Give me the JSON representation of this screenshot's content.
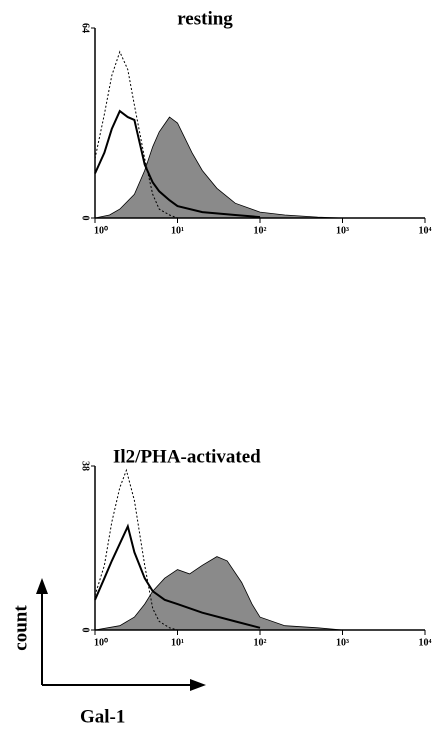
{
  "chart_data": [
    {
      "type": "histogram-overlay",
      "title": "resting",
      "xscale": "log",
      "xlim": [
        1,
        10000
      ],
      "ylim": [
        0,
        64
      ],
      "xticks": [
        {
          "value": 1,
          "label": "10⁰"
        },
        {
          "value": 10,
          "label": "10¹"
        },
        {
          "value": 100,
          "label": "10²"
        },
        {
          "value": 1000,
          "label": "10³"
        },
        {
          "value": 10000,
          "label": "10⁴"
        }
      ],
      "yticks": [
        0,
        64
      ],
      "series": [
        {
          "color": "#8a8a8a",
          "fill": true,
          "x": [
            1,
            1.5,
            2,
            3,
            4,
            5,
            6,
            8,
            10,
            15,
            20,
            30,
            50,
            100,
            200,
            500,
            1000
          ],
          "values": [
            0,
            1,
            3,
            8,
            16,
            24,
            29,
            34,
            32,
            22,
            16,
            10,
            5,
            2,
            1,
            0.3,
            0
          ]
        },
        {
          "color": "#000000",
          "dash": "solid",
          "x": [
            1,
            1.3,
            1.6,
            2,
            2.5,
            3,
            3.5,
            4,
            5,
            6,
            8,
            10,
            20,
            50,
            100
          ],
          "values": [
            15,
            22,
            30,
            36,
            34,
            33,
            25,
            18,
            12,
            9,
            6,
            4,
            2,
            1,
            0.3
          ]
        },
        {
          "color": "#000000",
          "dash": "dotted",
          "x": [
            1,
            1.3,
            1.6,
            2,
            2.5,
            3,
            4,
            5,
            6,
            8,
            10
          ],
          "values": [
            20,
            35,
            48,
            56,
            50,
            38,
            20,
            8,
            3,
            1,
            0
          ]
        }
      ]
    },
    {
      "type": "histogram-overlay",
      "title": "Il2/PHA-activated",
      "xscale": "log",
      "xlim": [
        1,
        10000
      ],
      "ylim": [
        0,
        38
      ],
      "xticks": [
        {
          "value": 1,
          "label": "10⁰"
        },
        {
          "value": 10,
          "label": "10¹"
        },
        {
          "value": 100,
          "label": "10²"
        },
        {
          "value": 1000,
          "label": "10³"
        },
        {
          "value": 10000,
          "label": "10⁴"
        }
      ],
      "yticks": [
        0,
        38
      ],
      "series": [
        {
          "color": "#8a8a8a",
          "fill": true,
          "x": [
            1,
            2,
            3,
            4,
            5,
            7,
            10,
            14,
            20,
            30,
            40,
            60,
            80,
            100,
            200,
            500,
            1000
          ],
          "values": [
            0,
            1,
            3,
            6,
            9,
            12,
            14,
            13,
            15,
            17,
            16,
            11,
            6,
            3,
            1,
            0.5,
            0
          ]
        },
        {
          "color": "#000000",
          "dash": "solid",
          "x": [
            1,
            1.3,
            1.6,
            2,
            2.5,
            3,
            4,
            5,
            7,
            10,
            20,
            50,
            100
          ],
          "values": [
            7,
            12,
            16,
            20,
            24,
            18,
            12,
            9,
            7,
            6,
            4,
            2,
            0.5
          ]
        },
        {
          "color": "#000000",
          "dash": "dotted",
          "x": [
            1,
            1.3,
            1.6,
            2,
            2.4,
            3,
            4,
            5,
            6,
            8,
            10
          ],
          "values": [
            8,
            15,
            25,
            33,
            37,
            30,
            15,
            5,
            2,
            0.5,
            0
          ]
        }
      ]
    }
  ],
  "axes_key": {
    "y_label": "count",
    "x_label": "Gal-1"
  }
}
